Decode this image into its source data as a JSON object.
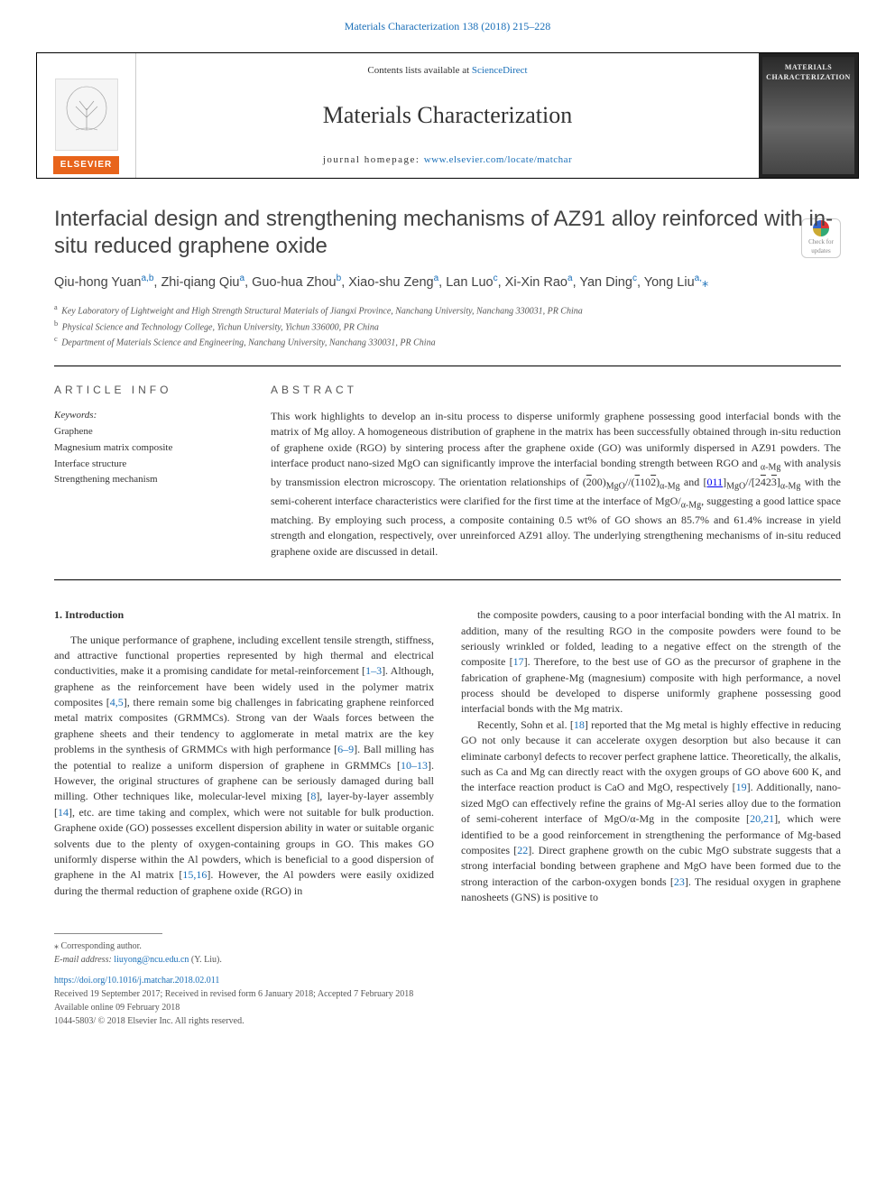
{
  "header": {
    "top_link_text": "Materials Characterization 138 (2018) 215–228",
    "contents_prefix": "Contents lists available at ",
    "contents_link": "ScienceDirect",
    "journal_title": "Materials Characterization",
    "homepage_prefix": "journal homepage: ",
    "homepage_link": "www.elsevier.com/locate/matchar",
    "elsevier_label": "ELSEVIER",
    "cover_title": "MATERIALS CHARACTERIZATION"
  },
  "article": {
    "title": "Interfacial design and strengthening mechanisms of AZ91 alloy reinforced with in-situ reduced graphene oxide",
    "check_updates_label": "Check for updates",
    "authors_html": "Qiu-hong Yuan<sup>a,b</sup>, Zhi-qiang Qiu<sup>a</sup>, Guo-hua Zhou<sup>b</sup>, Xiao-shu Zeng<sup>a</sup>, Lan Luo<sup>c</sup>, Xi-Xin Rao<sup>a</sup>, Yan Ding<sup>c</sup>, Yong Liu<sup>a,</sup><span class='corr'>⁎</span>",
    "affiliations": [
      {
        "sup": "a",
        "text": "Key Laboratory of Lightweight and High Strength Structural Materials of Jiangxi Province, Nanchang University, Nanchang 330031, PR China"
      },
      {
        "sup": "b",
        "text": "Physical Science and Technology College, Yichun University, Yichun 336000, PR China"
      },
      {
        "sup": "c",
        "text": "Department of Materials Science and Engineering, Nanchang University, Nanchang 330031, PR China"
      }
    ]
  },
  "info": {
    "heading": "ARTICLE INFO",
    "keywords_label": "Keywords:",
    "keywords": [
      "Graphene",
      "Magnesium matrix composite",
      "Interface structure",
      "Strengthening mechanism"
    ]
  },
  "abstract": {
    "heading": "ABSTRACT",
    "text": "This work highlights to develop an in-situ process to disperse uniformly graphene possessing good interfacial bonds with the matrix of Mg alloy. A homogeneous distribution of graphene in the matrix has been successfully obtained through in-situ reduction of graphene oxide (RGO) by sintering process after the graphene oxide (GO) was uniformly dispersed in AZ91 powders. The interface product nano-sized MgO can significantly improve the interfacial bonding strength between RGO and α-Mg with analysis by transmission electron microscopy. The orientation relationships of (2̄00)MgO//(1̄102̄)α-Mg and [011]MgO//[24̄23̄]α-Mg with the semi-coherent interface characteristics were clarified for the first time at the interface of MgO/α-Mg, suggesting a good lattice space matching. By employing such process, a composite containing 0.5 wt% of GO shows an 85.7% and 61.4% increase in yield strength and elongation, respectively, over unreinforced AZ91 alloy. The underlying strengthening mechanisms of in-situ reduced graphene oxide are discussed in detail."
  },
  "body": {
    "section_title": "1. Introduction",
    "para1": "The unique performance of graphene, including excellent tensile strength, stiffness, and attractive functional properties represented by high thermal and electrical conductivities, make it a promising candidate for metal-reinforcement [1–3]. Although, graphene as the reinforcement have been widely used in the polymer matrix composites [4,5], there remain some big challenges in fabricating graphene reinforced metal matrix composites (GRMMCs). Strong van der Waals forces between the graphene sheets and their tendency to agglomerate in metal matrix are the key problems in the synthesis of GRMMCs with high performance [6–9]. Ball milling has the potential to realize a uniform dispersion of graphene in GRMMCs [10–13]. However, the original structures of graphene can be seriously damaged during ball milling. Other techniques like, molecular-level mixing [8], layer-by-layer assembly [14], etc. are time taking and complex, which were not suitable for bulk production. Graphene oxide (GO) possesses excellent dispersion ability in water or suitable organic solvents due to the plenty of oxygen-containing groups in GO. This makes GO uniformly disperse within the Al powders, which is beneficial to a good dispersion of graphene in the Al matrix [15,16]. However, the Al powders were easily oxidized during the thermal reduction of graphene oxide (RGO) in",
    "para2": "the composite powders, causing to a poor interfacial bonding with the Al matrix. In addition, many of the resulting RGO in the composite powders were found to be seriously wrinkled or folded, leading to a negative effect on the strength of the composite [17]. Therefore, to the best use of GO as the precursor of graphene in the fabrication of graphene-Mg (magnesium) composite with high performance, a novel process should be developed to disperse uniformly graphene possessing good interfacial bonds with the Mg matrix.",
    "para3": "Recently, Sohn et al. [18] reported that the Mg metal is highly effective in reducing GO not only because it can accelerate oxygen desorption but also because it can eliminate carbonyl defects to recover perfect graphene lattice. Theoretically, the alkalis, such as Ca and Mg can directly react with the oxygen groups of GO above 600 K, and the interface reaction product is CaO and MgO, respectively [19]. Additionally, nano-sized MgO can effectively refine the grains of Mg-Al series alloy due to the formation of semi-coherent interface of MgO/α-Mg in the composite [20,21], which were identified to be a good reinforcement in strengthening the performance of Mg-based composites [22]. Direct graphene growth on the cubic MgO substrate suggests that a strong interfacial bonding between graphene and MgO have been formed due to the strong interaction of the carbon-oxygen bonds [23]. The residual oxygen in graphene nanosheets (GNS) is positive to"
  },
  "refs": {
    "r1_3": "1–3",
    "r4": "4",
    "r5": "5",
    "r6_9": "6–9",
    "r8": "8",
    "r10_13": "10–13",
    "r14": "14",
    "r15": "15",
    "r16": "16",
    "r17": "17",
    "r18": "18",
    "r19": "19",
    "r20": "20",
    "r21": "21",
    "r22": "22",
    "r23": "23"
  },
  "footer": {
    "corr_label": "⁎ Corresponding author.",
    "email_label": "E-mail address: ",
    "email": "liuyong@ncu.edu.cn",
    "email_suffix": " (Y. Liu).",
    "doi": "https://doi.org/10.1016/j.matchar.2018.02.011",
    "received": "Received 19 September 2017; Received in revised form 6 January 2018; Accepted 7 February 2018",
    "available": "Available online 09 February 2018",
    "copyright": "1044-5803/ © 2018 Elsevier Inc. All rights reserved."
  },
  "colors": {
    "link": "#1a6fb8",
    "elsevier_orange": "#e8641b",
    "text": "#333333",
    "rule": "#000000"
  }
}
